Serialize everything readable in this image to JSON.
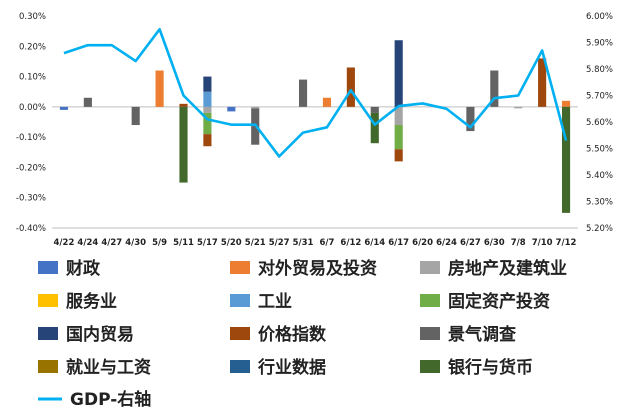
{
  "chart_data": {
    "type": "bar",
    "title": "",
    "xlabel": "",
    "ylabel": "",
    "y_left": {
      "min": -0.4,
      "max": 0.3,
      "step": 0.1,
      "tick_labels": [
        "0.30%",
        "0.20%",
        "0.10%",
        "0.00%",
        "-0.10%",
        "-0.20%",
        "-0.30%",
        "-0.40%"
      ]
    },
    "y_right": {
      "min": 5.2,
      "max": 6.0,
      "step": 0.1,
      "tick_labels": [
        "6.00%",
        "5.90%",
        "5.80%",
        "5.70%",
        "5.60%",
        "5.50%",
        "5.40%",
        "5.30%",
        "5.20%"
      ]
    },
    "categories": [
      "4/22",
      "4/24",
      "4/27",
      "4/30",
      "5/9",
      "5/11",
      "5/17",
      "5/20",
      "5/21",
      "5/27",
      "5/31",
      "6/7",
      "6/12",
      "6/14",
      "6/17",
      "6/20",
      "6/24",
      "6/27",
      "6/30",
      "7/8",
      "7/10",
      "7/12"
    ],
    "bar_series": [
      {
        "name": "财政",
        "color": "#4472C4",
        "values": [
          -0.01,
          0,
          0,
          0,
          0,
          0,
          0,
          -0.015,
          0,
          0,
          0,
          0,
          0,
          0,
          0,
          0,
          0,
          0,
          0,
          0,
          0,
          0
        ]
      },
      {
        "name": "对外贸易及投资",
        "color": "#ED7D31",
        "values": [
          0,
          0,
          0,
          0,
          0.12,
          0,
          0,
          0,
          0,
          0,
          0,
          0.03,
          0,
          0,
          0,
          0,
          0,
          0,
          0,
          0,
          0,
          0.02
        ]
      },
      {
        "name": "房地产及建筑业",
        "color": "#A5A5A5",
        "values": [
          0,
          0,
          0,
          0,
          0,
          0,
          -0.02,
          0,
          -0.005,
          0,
          0,
          0,
          0,
          0,
          -0.06,
          0,
          0,
          0,
          0,
          -0.005,
          0,
          0
        ]
      },
      {
        "name": "服务业",
        "color": "#FFC000",
        "values": [
          0,
          0,
          0,
          0,
          0,
          0,
          0,
          0,
          0,
          0,
          0,
          0,
          0,
          0,
          0,
          0,
          0,
          0,
          0,
          0,
          0,
          0
        ]
      },
      {
        "name": "工业",
        "color": "#5B9BD5",
        "values": [
          0,
          0,
          0,
          0,
          0,
          0,
          0.05,
          0,
          0,
          0,
          0,
          0,
          0,
          0,
          0,
          0,
          0,
          0,
          0,
          0,
          0,
          0
        ]
      },
      {
        "name": "固定资产投资",
        "color": "#70AD47",
        "values": [
          0,
          0,
          0,
          0,
          0,
          0,
          -0.07,
          0,
          0,
          0,
          0,
          0,
          0,
          0,
          -0.08,
          0,
          0,
          0,
          0,
          0,
          0,
          0
        ]
      },
      {
        "name": "国内贸易",
        "color": "#264478",
        "values": [
          0,
          0,
          0,
          0,
          0,
          0,
          0.05,
          0,
          0,
          0,
          0,
          0,
          0,
          0,
          0.22,
          0,
          0,
          0,
          0,
          0,
          0,
          0
        ]
      },
      {
        "name": "价格指数",
        "color": "#9E480E",
        "values": [
          0,
          0,
          0,
          0,
          0,
          0.01,
          -0.04,
          0,
          0,
          0,
          0,
          0,
          0.13,
          0,
          -0.04,
          0,
          0,
          0,
          0,
          0,
          0.16,
          0
        ]
      },
      {
        "name": "景气调查",
        "color": "#636363",
        "values": [
          0,
          0.03,
          0,
          -0.06,
          0,
          0,
          0,
          0,
          -0.12,
          0,
          0.09,
          0,
          0,
          -0.02,
          0,
          0,
          0,
          -0.08,
          0.12,
          0,
          0,
          0
        ]
      },
      {
        "name": "就业与工资",
        "color": "#997300",
        "values": [
          0,
          0,
          0,
          0,
          0,
          0,
          0,
          0,
          0,
          0,
          0,
          0,
          0,
          0,
          0,
          0,
          0,
          0,
          0,
          0,
          0,
          0
        ]
      },
      {
        "name": "行业数据",
        "color": "#255E91",
        "values": [
          0,
          0,
          0,
          0,
          0,
          0,
          0,
          0,
          0,
          0,
          0,
          0,
          0,
          0,
          0,
          0,
          0,
          0,
          0,
          0,
          0,
          0
        ]
      },
      {
        "name": "银行与货币",
        "color": "#43682B",
        "values": [
          0,
          0,
          0,
          0,
          0,
          -0.25,
          0,
          0,
          0,
          0,
          0,
          0,
          0,
          -0.1,
          0,
          0,
          0,
          0,
          0,
          0,
          0,
          -0.35
        ]
      }
    ],
    "line_series": {
      "name": "GDP-右轴",
      "color": "#00B0F0",
      "axis": "right",
      "values": [
        5.86,
        5.89,
        5.89,
        5.83,
        5.95,
        5.7,
        5.61,
        5.59,
        5.59,
        5.47,
        5.56,
        5.58,
        5.72,
        5.59,
        5.66,
        5.67,
        5.65,
        5.58,
        5.69,
        5.7,
        5.87,
        5.53
      ]
    },
    "legend_placement": "bottom",
    "grid": false
  }
}
